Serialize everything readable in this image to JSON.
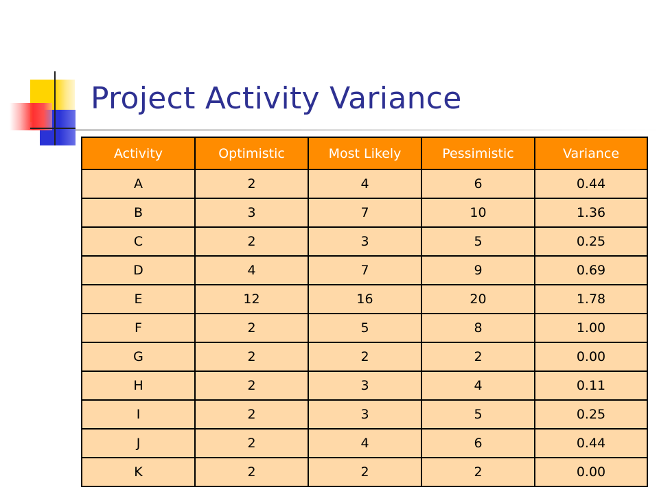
{
  "slide": {
    "title": "Project Activity Variance"
  },
  "colors": {
    "title": "#2e3192",
    "header_bg": "#ff8c00",
    "header_text": "#ffffff",
    "cell_bg": "#ffd9a8",
    "accent_yellow": "#ffd400",
    "accent_blue": "#2a33d6",
    "accent_red": "#ff3030"
  },
  "table": {
    "headers": [
      "Activity",
      "Optimistic",
      "Most Likely",
      "Pessimistic",
      "Variance"
    ],
    "rows": [
      [
        "A",
        "2",
        "4",
        "6",
        "0.44"
      ],
      [
        "B",
        "3",
        "7",
        "10",
        "1.36"
      ],
      [
        "C",
        "2",
        "3",
        "5",
        "0.25"
      ],
      [
        "D",
        "4",
        "7",
        "9",
        "0.69"
      ],
      [
        "E",
        "12",
        "16",
        "20",
        "1.78"
      ],
      [
        "F",
        "2",
        "5",
        "8",
        "1.00"
      ],
      [
        "G",
        "2",
        "2",
        "2",
        "0.00"
      ],
      [
        "H",
        "2",
        "3",
        "4",
        "0.11"
      ],
      [
        "I",
        "2",
        "3",
        "5",
        "0.25"
      ],
      [
        "J",
        "2",
        "4",
        "6",
        "0.44"
      ],
      [
        "K",
        "2",
        "2",
        "2",
        "0.00"
      ]
    ]
  }
}
